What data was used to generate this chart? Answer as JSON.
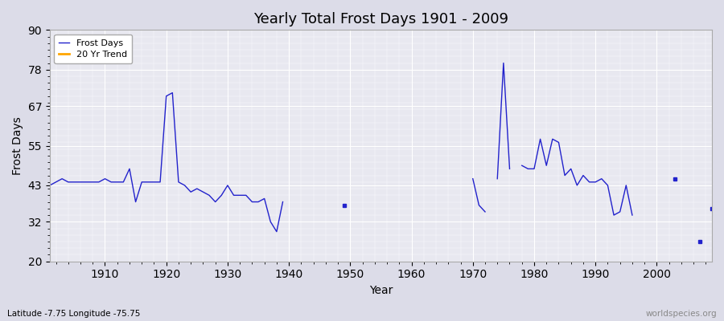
{
  "title": "Yearly Total Frost Days 1901 - 2009",
  "xlabel": "Year",
  "ylabel": "Frost Days",
  "lat_lon_label": "Latitude -7.75 Longitude -75.75",
  "watermark": "worldspecies.org",
  "ylim": [
    20,
    90
  ],
  "yticks": [
    20,
    32,
    43,
    55,
    67,
    78,
    90
  ],
  "line_color": "#2222cc",
  "line_color_trend": "#FFA500",
  "bg_color": "#e8e8f0",
  "fig_bg_color": "#dcdce8",
  "xticks": [
    1910,
    1920,
    1930,
    1940,
    1950,
    1960,
    1970,
    1980,
    1990,
    2000
  ],
  "years": [
    1901,
    1902,
    1903,
    1904,
    1905,
    1906,
    1907,
    1908,
    1909,
    1910,
    1911,
    1912,
    1913,
    1914,
    1915,
    1916,
    1917,
    1918,
    1919,
    1920,
    1921,
    1922,
    1923,
    1924,
    1925,
    1926,
    1927,
    1928,
    1929,
    1930,
    1931,
    1932,
    1933,
    1934,
    1935,
    1936,
    1937,
    1938,
    1939,
    1940,
    1941,
    1942,
    1943,
    1944,
    1945,
    1946,
    1947,
    1948,
    1949,
    1950,
    1951,
    1952,
    1953,
    1954,
    1955,
    1956,
    1957,
    1958,
    1959,
    1960,
    1961,
    1962,
    1963,
    1964,
    1965,
    1966,
    1967,
    1968,
    1969,
    1970,
    1971,
    1972,
    1973,
    1974,
    1975,
    1976,
    1977,
    1978,
    1979,
    1980,
    1981,
    1982,
    1983,
    1984,
    1985,
    1986,
    1987,
    1988,
    1989,
    1990,
    1991,
    1992,
    1993,
    1994,
    1995,
    1996,
    1997,
    1998,
    1999,
    2000,
    2001,
    2002,
    2003,
    2004,
    2005,
    2006,
    2007,
    2008,
    2009
  ],
  "frost_days": [
    43,
    44,
    45,
    44,
    44,
    44,
    44,
    44,
    44,
    45,
    44,
    44,
    44,
    48,
    38,
    44,
    44,
    44,
    44,
    70,
    71,
    44,
    43,
    41,
    42,
    41,
    40,
    38,
    40,
    43,
    40,
    40,
    40,
    38,
    38,
    39,
    32,
    29,
    38,
    null,
    null,
    null,
    null,
    null,
    null,
    null,
    null,
    null,
    37,
    null,
    null,
    null,
    null,
    null,
    null,
    null,
    null,
    null,
    null,
    null,
    null,
    null,
    null,
    null,
    null,
    null,
    null,
    null,
    null,
    45,
    37,
    35,
    null,
    45,
    80,
    48,
    null,
    49,
    48,
    48,
    57,
    49,
    57,
    56,
    46,
    48,
    43,
    46,
    44,
    44,
    45,
    43,
    34,
    35,
    43,
    34,
    null,
    null,
    null,
    null,
    null,
    null,
    45,
    null,
    null,
    null,
    26,
    null,
    36
  ]
}
